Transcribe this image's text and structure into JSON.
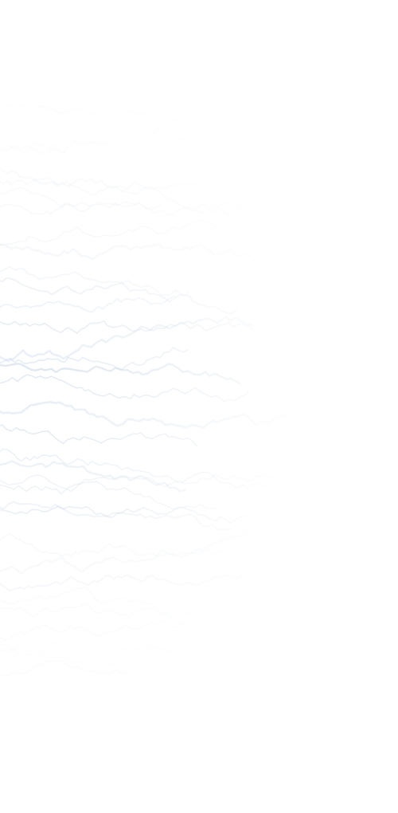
{
  "page": {
    "background_color": "#ffffff",
    "line_color": "#b9cde4",
    "line_color_dark": "#9fb7d2",
    "pattern": "decorative-waveform-lines"
  }
}
